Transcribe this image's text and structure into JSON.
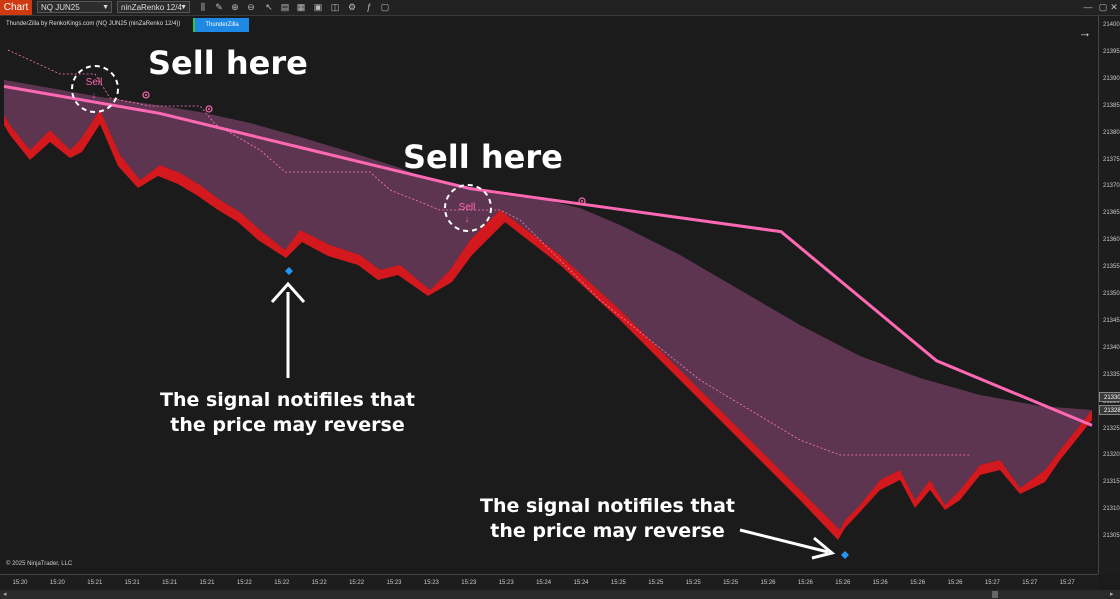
{
  "toolbar": {
    "chart_tab": "Chart",
    "instrument": "NQ JUN25",
    "bar_type": "ninZaRenko 12/4",
    "tools": [
      "bars-icon",
      "pencil-icon",
      "zoom-in-icon",
      "zoom-out-icon",
      "pointer-icon",
      "properties-icon",
      "templates-icon",
      "data-box-icon",
      "snapshot-icon",
      "strategies-icon",
      "indicators-icon",
      "window-icon"
    ]
  },
  "window_controls": [
    "minimize-icon",
    "maximize-icon",
    "close-icon"
  ],
  "chart_header": {
    "indicator_label": "ThunderZilla by RenkoKings.com (NQ JUN25 (ninZaRenko 12/4))",
    "badge": "ThunderZilla",
    "copyright": "© 2025 NinjaTrader, LLC"
  },
  "annotations": {
    "sell_here_1": "Sell here",
    "sell_here_2": "Sell here",
    "sell_marker": "Sell",
    "signal_note_1": "The signal notifiles that the price may reverse",
    "signal_note_2": "The signal notifiles that the price may reverse"
  },
  "colors": {
    "background": "#1b1b1b",
    "moving_average": "#ff69b4",
    "bars": "#e8191e",
    "cloud": "#6a3a5a",
    "signal_diamond": "#2196f3",
    "trail_stop": "#ff7ab8"
  },
  "y_axis_labels": [
    "21400",
    "21395",
    "21390",
    "21385",
    "21380",
    "21375",
    "21370",
    "21365",
    "21360",
    "21355",
    "21350",
    "21345",
    "21340",
    "21335",
    "21330",
    "21325",
    "21320",
    "21315",
    "21310",
    "21305"
  ],
  "price_tags": [
    "21330",
    "21328"
  ],
  "x_axis_labels": [
    "15:20",
    "15:20",
    "15:21",
    "15:21",
    "15:21",
    "15:21",
    "15:22",
    "15:22",
    "15:22",
    "15:22",
    "15:23",
    "15:23",
    "15:23",
    "15:23",
    "15:24",
    "15:24",
    "15:25",
    "15:25",
    "15:25",
    "15:25",
    "15:26",
    "15:26",
    "15:26",
    "15:26",
    "15:26",
    "15:26",
    "15:27",
    "15:27",
    "15:27"
  ],
  "chart_data": {
    "type": "line",
    "series": [
      {
        "name": "",
        "x": [
          "15:20",
          "15:21",
          "15:22",
          "15:23",
          "15:24",
          "15:25",
          "15:26",
          "15:27"
        ],
        "values": [
          21391,
          21386,
          21379,
          21372,
          21368,
          21364,
          21340,
          21328
        ]
      }
    ]
  }
}
